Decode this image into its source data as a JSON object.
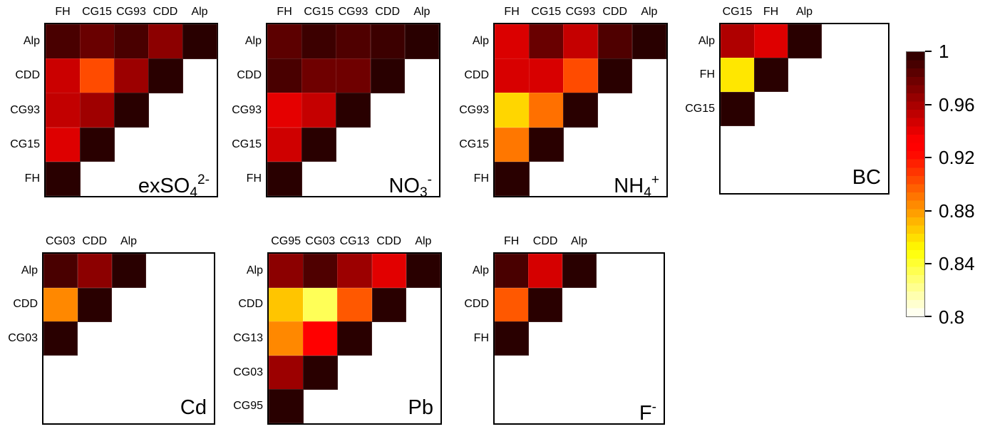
{
  "chart_data": {
    "type": "heatmap",
    "subtype": "lower-triangular-correlation-matrices",
    "colormap": "hot-reversed",
    "value_range": [
      0.8,
      1
    ],
    "grid": false,
    "colorbar": {
      "position": "right",
      "min": 0.8,
      "max": 1,
      "levels": 32,
      "tick_labels": [
        "1",
        "0.96",
        "0.92",
        "0.88",
        "0.84",
        "0.8"
      ],
      "tick_values": [
        1,
        0.96,
        0.92,
        0.88,
        0.84,
        0.8
      ]
    },
    "panels": [
      {
        "id": "exso4",
        "title": "exSO_{4}^{2-}",
        "columns": [
          "FH",
          "CG15",
          "CG93",
          "CDD",
          "Alp"
        ],
        "rows": [
          "Alp",
          "CDD",
          "CG93",
          "CG15",
          "FH"
        ],
        "values": [
          [
            0.99,
            0.98,
            0.99,
            0.969,
            1.0
          ],
          [
            0.949,
            0.903,
            0.964,
            1.0,
            null
          ],
          [
            0.952,
            0.963,
            1.0,
            null,
            null
          ],
          [
            0.943,
            1.0,
            null,
            null,
            null
          ],
          [
            1.0,
            null,
            null,
            null,
            null
          ]
        ]
      },
      {
        "id": "no3",
        "title": "NO_{3}^{-}",
        "columns": [
          "FH",
          "CG15",
          "CG93",
          "CDD",
          "Alp"
        ],
        "rows": [
          "Alp",
          "CDD",
          "CG93",
          "CG15",
          "FH"
        ],
        "values": [
          [
            0.984,
            0.994,
            0.988,
            0.994,
            1.0
          ],
          [
            0.99,
            0.978,
            0.978,
            1.0,
            null
          ],
          [
            0.941,
            0.951,
            1.0,
            null,
            null
          ],
          [
            0.948,
            1.0,
            null,
            null,
            null
          ],
          [
            1.0,
            null,
            null,
            null,
            null
          ]
        ]
      },
      {
        "id": "nh4",
        "title": "NH_{4}^{+}",
        "columns": [
          "FH",
          "CG15",
          "CG93",
          "CDD",
          "Alp"
        ],
        "rows": [
          "Alp",
          "CDD",
          "CG93",
          "CG15",
          "FH"
        ],
        "values": [
          [
            0.944,
            0.98,
            0.951,
            0.988,
            1.0
          ],
          [
            0.945,
            0.945,
            0.903,
            1.0,
            null
          ],
          [
            0.862,
            0.892,
            1.0,
            null,
            null
          ],
          [
            0.89,
            1.0,
            null,
            null,
            null
          ],
          [
            1.0,
            null,
            null,
            null,
            null
          ]
        ]
      },
      {
        "id": "bc",
        "title": "BC",
        "columns": [
          "CG15",
          "FH",
          "Alp"
        ],
        "rows": [
          "Alp",
          "FH",
          "CG15"
        ],
        "values": [
          [
            0.958,
            0.943,
            1.0
          ],
          [
            0.857,
            1.0,
            null
          ],
          [
            1.0,
            null,
            null
          ]
        ]
      },
      {
        "id": "cd",
        "title": "Cd",
        "columns": [
          "CG03",
          "CDD",
          "Alp"
        ],
        "rows": [
          "Alp",
          "CDD",
          "CG03"
        ],
        "values": [
          [
            0.99,
            0.969,
            1.0
          ],
          [
            0.885,
            1.0,
            null
          ],
          [
            1.0,
            null,
            null
          ]
        ]
      },
      {
        "id": "pb",
        "title": "Pb",
        "columns": [
          "CG95",
          "CG03",
          "CG13",
          "CDD",
          "Alp"
        ],
        "rows": [
          "Alp",
          "CDD",
          "CG13",
          "CG03",
          "CG95"
        ],
        "values": [
          [
            0.969,
            0.988,
            0.964,
            0.942,
            1.0
          ],
          [
            0.867,
            0.833,
            0.899,
            1.0,
            null
          ],
          [
            0.885,
            0.932,
            1.0,
            null,
            null
          ],
          [
            0.964,
            1.0,
            null,
            null,
            null
          ],
          [
            1.0,
            null,
            null,
            null,
            null
          ]
        ]
      },
      {
        "id": "f",
        "title": "F^{-}",
        "columns": [
          "FH",
          "CDD",
          "Alp"
        ],
        "rows": [
          "Alp",
          "CDD",
          "FH"
        ],
        "values": [
          [
            0.99,
            0.946,
            1.0
          ],
          [
            0.899,
            1.0,
            null
          ],
          [
            1.0,
            null,
            null
          ]
        ]
      }
    ]
  }
}
